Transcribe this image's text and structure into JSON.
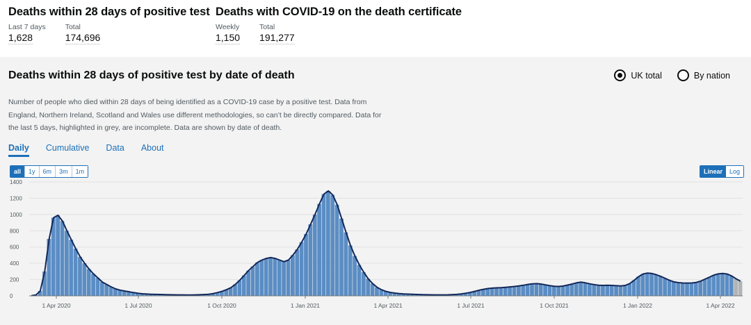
{
  "headline": {
    "cards": [
      {
        "title": "Deaths within 28 days of positive test",
        "metrics": [
          {
            "label": "Last 7 days",
            "value": "1,628"
          },
          {
            "label": "Total",
            "value": "174,696"
          }
        ]
      },
      {
        "title": "Deaths with COVID-19 on the death certificate",
        "metrics": [
          {
            "label": "Weekly",
            "value": "1,150"
          },
          {
            "label": "Total",
            "value": "191,277"
          }
        ]
      }
    ]
  },
  "card": {
    "title": "Deaths within 28 days of positive test by date of death",
    "radios": [
      {
        "label": "UK total",
        "selected": true
      },
      {
        "label": "By nation",
        "selected": false
      }
    ],
    "description": "Number of people who died within 28 days of being identified as a COVID-19 case by a positive test. Data from England, Northern Ireland, Scotland and Wales use different methodologies, so can’t be directly compared. Data for the last 5 days, highlighted in grey, are incomplete. Data are shown by date of death.",
    "tabs": [
      {
        "label": "Daily",
        "active": true
      },
      {
        "label": "Cumulative",
        "active": false
      },
      {
        "label": "Data",
        "active": false
      },
      {
        "label": "About",
        "active": false
      }
    ],
    "range_buttons": [
      {
        "label": "all",
        "active": true
      },
      {
        "label": "1y",
        "active": false
      },
      {
        "label": "6m",
        "active": false
      },
      {
        "label": "3m",
        "active": false
      },
      {
        "label": "1m",
        "active": false
      }
    ],
    "scale_buttons": [
      {
        "label": "Linear",
        "active": true
      },
      {
        "label": "Log",
        "active": false
      }
    ]
  },
  "colors": {
    "bar": "#5b8dc4",
    "bar_incomplete": "#b1b4b6",
    "line": "#12285a",
    "accent": "#1d70b8"
  },
  "chart_data": {
    "type": "bar",
    "ylim": [
      0,
      1400
    ],
    "yticks": [
      0,
      200,
      400,
      600,
      800,
      1000,
      1200,
      1400
    ],
    "xticks": [
      "1 Apr 2020",
      "1 Jul 2020",
      "1 Oct 2020",
      "1 Jan 2021",
      "1 Apr 2021",
      "1 Jul 2021",
      "1 Oct 2021",
      "1 Jan 2022",
      "1 Apr 2022"
    ],
    "series": [
      {
        "values_by_week": [
          2,
          10,
          60,
          300,
          700,
          960,
          990,
          920,
          800,
          690,
          580,
          480,
          400,
          330,
          270,
          220,
          170,
          140,
          110,
          85,
          70,
          60,
          50,
          40,
          32,
          26,
          22,
          20,
          18,
          17,
          15,
          14,
          13,
          12,
          12,
          11,
          11,
          12,
          14,
          16,
          20,
          28,
          40,
          55,
          75,
          100,
          140,
          190,
          250,
          310,
          360,
          410,
          440,
          460,
          470,
          460,
          440,
          420,
          440,
          500,
          570,
          660,
          760,
          880,
          1000,
          1130,
          1250,
          1290,
          1240,
          1120,
          950,
          780,
          620,
          490,
          380,
          290,
          210,
          150,
          105,
          75,
          55,
          42,
          34,
          28,
          24,
          21,
          19,
          17,
          15,
          14,
          13,
          12,
          12,
          12,
          13,
          15,
          18,
          24,
          32,
          42,
          55,
          68,
          80,
          90,
          95,
          98,
          100,
          105,
          110,
          115,
          122,
          130,
          140,
          148,
          150,
          145,
          135,
          125,
          118,
          115,
          120,
          132,
          145,
          160,
          168,
          160,
          148,
          138,
          130,
          128,
          130,
          128,
          125,
          122,
          128,
          150,
          190,
          235,
          268,
          280,
          275,
          260,
          240,
          215,
          190,
          172,
          162,
          158,
          157,
          158,
          165,
          180,
          205,
          230,
          255,
          270,
          275,
          268,
          245,
          210,
          180
        ]
      }
    ],
    "incomplete_last_points": 2
  }
}
